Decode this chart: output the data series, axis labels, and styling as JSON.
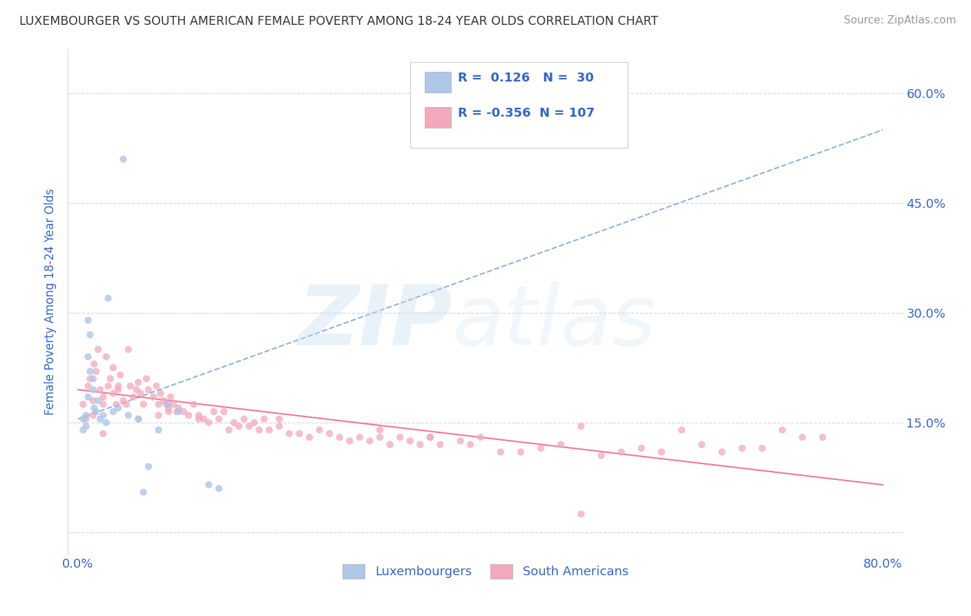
{
  "title": "LUXEMBOURGER VS SOUTH AMERICAN FEMALE POVERTY AMONG 18-24 YEAR OLDS CORRELATION CHART",
  "source": "Source: ZipAtlas.com",
  "ylabel": "Female Poverty Among 18-24 Year Olds",
  "xlim": [
    -0.01,
    0.82
  ],
  "ylim": [
    -0.03,
    0.66
  ],
  "lux_R": 0.126,
  "lux_N": 30,
  "sam_R": -0.356,
  "sam_N": 107,
  "lux_color": "#aec6e8",
  "sam_color": "#f4a8bb",
  "lux_line_color": "#5588cc",
  "sam_line_color": "#f06888",
  "background_color": "#ffffff",
  "grid_color": "#d0d8e8",
  "text_color": "#3366cc",
  "title_color": "#333333",
  "source_color": "#999999",
  "lux_trend_x0": 0.0,
  "lux_trend_x1": 0.8,
  "lux_trend_y0": 0.155,
  "lux_trend_y1": 0.55,
  "sam_trend_x0": 0.0,
  "sam_trend_x1": 0.8,
  "sam_trend_y0": 0.195,
  "sam_trend_y1": 0.065,
  "lux_x": [
    0.005,
    0.005,
    0.008,
    0.008,
    0.01,
    0.01,
    0.01,
    0.012,
    0.012,
    0.015,
    0.015,
    0.016,
    0.018,
    0.02,
    0.022,
    0.025,
    0.028,
    0.03,
    0.035,
    0.04,
    0.045,
    0.05,
    0.06,
    0.065,
    0.07,
    0.08,
    0.09,
    0.1,
    0.13,
    0.14
  ],
  "lux_y": [
    0.155,
    0.14,
    0.16,
    0.145,
    0.29,
    0.24,
    0.185,
    0.27,
    0.22,
    0.21,
    0.195,
    0.17,
    0.165,
    0.18,
    0.155,
    0.16,
    0.15,
    0.32,
    0.165,
    0.17,
    0.51,
    0.16,
    0.155,
    0.055,
    0.09,
    0.14,
    0.175,
    0.165,
    0.065,
    0.06
  ],
  "sam_x": [
    0.005,
    0.008,
    0.01,
    0.012,
    0.015,
    0.016,
    0.018,
    0.02,
    0.022,
    0.025,
    0.025,
    0.028,
    0.03,
    0.032,
    0.035,
    0.035,
    0.038,
    0.04,
    0.042,
    0.045,
    0.048,
    0.05,
    0.052,
    0.055,
    0.058,
    0.06,
    0.062,
    0.065,
    0.068,
    0.07,
    0.075,
    0.078,
    0.08,
    0.082,
    0.085,
    0.088,
    0.09,
    0.092,
    0.095,
    0.098,
    0.1,
    0.105,
    0.11,
    0.115,
    0.12,
    0.125,
    0.13,
    0.135,
    0.14,
    0.145,
    0.15,
    0.155,
    0.16,
    0.165,
    0.17,
    0.175,
    0.18,
    0.185,
    0.19,
    0.2,
    0.21,
    0.22,
    0.23,
    0.24,
    0.25,
    0.26,
    0.27,
    0.28,
    0.29,
    0.3,
    0.31,
    0.32,
    0.33,
    0.34,
    0.35,
    0.36,
    0.38,
    0.39,
    0.4,
    0.42,
    0.44,
    0.46,
    0.48,
    0.5,
    0.52,
    0.54,
    0.56,
    0.58,
    0.6,
    0.62,
    0.64,
    0.66,
    0.68,
    0.7,
    0.72,
    0.74,
    0.5,
    0.35,
    0.12,
    0.08,
    0.04,
    0.025,
    0.015,
    0.06,
    0.09,
    0.2,
    0.3
  ],
  "sam_y": [
    0.175,
    0.155,
    0.2,
    0.21,
    0.18,
    0.23,
    0.22,
    0.25,
    0.195,
    0.175,
    0.185,
    0.24,
    0.2,
    0.21,
    0.19,
    0.225,
    0.175,
    0.195,
    0.215,
    0.18,
    0.175,
    0.25,
    0.2,
    0.185,
    0.195,
    0.205,
    0.19,
    0.175,
    0.21,
    0.195,
    0.185,
    0.2,
    0.175,
    0.19,
    0.18,
    0.175,
    0.165,
    0.185,
    0.175,
    0.165,
    0.17,
    0.165,
    0.16,
    0.175,
    0.16,
    0.155,
    0.15,
    0.165,
    0.155,
    0.165,
    0.14,
    0.15,
    0.145,
    0.155,
    0.145,
    0.15,
    0.14,
    0.155,
    0.14,
    0.145,
    0.135,
    0.135,
    0.13,
    0.14,
    0.135,
    0.13,
    0.125,
    0.13,
    0.125,
    0.13,
    0.12,
    0.13,
    0.125,
    0.12,
    0.13,
    0.12,
    0.125,
    0.12,
    0.13,
    0.11,
    0.11,
    0.115,
    0.12,
    0.025,
    0.105,
    0.11,
    0.115,
    0.11,
    0.14,
    0.12,
    0.11,
    0.115,
    0.115,
    0.14,
    0.13,
    0.13,
    0.145,
    0.13,
    0.155,
    0.16,
    0.2,
    0.135,
    0.16,
    0.155,
    0.17,
    0.155,
    0.14
  ]
}
